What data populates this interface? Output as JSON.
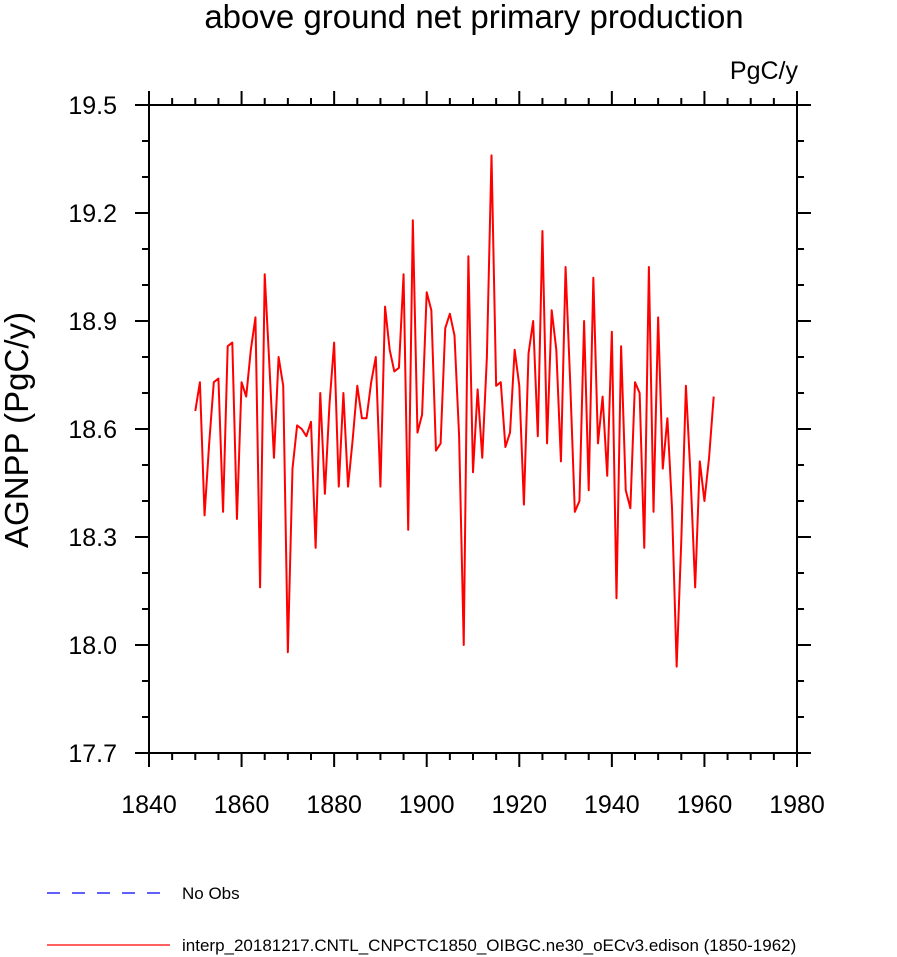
{
  "chart_data": {
    "type": "line",
    "title": "above ground net primary production",
    "units": "PgC/y",
    "ylabel": "AGNPP  (PgC/y)",
    "xlabel": "",
    "xlim": [
      1840,
      1980
    ],
    "ylim": [
      17.7,
      19.5
    ],
    "x_ticks": [
      "1840",
      "1860",
      "1880",
      "1900",
      "1920",
      "1940",
      "1960",
      "1980"
    ],
    "y_ticks": [
      "17.7",
      "18.0",
      "18.3",
      "18.6",
      "18.9",
      "19.2",
      "19.5"
    ],
    "x_tick_values": [
      1840,
      1860,
      1880,
      1900,
      1920,
      1940,
      1960,
      1980
    ],
    "y_tick_values": [
      17.7,
      18.0,
      18.3,
      18.6,
      18.9,
      19.2,
      19.5
    ],
    "series": [
      {
        "name": "interp_20181217.CNTL_CNPCTC1850_OIBGC.ne30_oECv3.edison (1850-1962)",
        "color": "#ff0000",
        "style": "solid",
        "x": [
          1850,
          1851,
          1852,
          1853,
          1854,
          1855,
          1856,
          1857,
          1858,
          1859,
          1860,
          1861,
          1862,
          1863,
          1864,
          1865,
          1866,
          1867,
          1868,
          1869,
          1870,
          1871,
          1872,
          1873,
          1874,
          1875,
          1876,
          1877,
          1878,
          1879,
          1880,
          1881,
          1882,
          1883,
          1884,
          1885,
          1886,
          1887,
          1888,
          1889,
          1890,
          1891,
          1892,
          1893,
          1894,
          1895,
          1896,
          1897,
          1898,
          1899,
          1900,
          1901,
          1902,
          1903,
          1904,
          1905,
          1906,
          1907,
          1908,
          1909,
          1910,
          1911,
          1912,
          1913,
          1914,
          1915,
          1916,
          1917,
          1918,
          1919,
          1920,
          1921,
          1922,
          1923,
          1924,
          1925,
          1926,
          1927,
          1928,
          1929,
          1930,
          1931,
          1932,
          1933,
          1934,
          1935,
          1936,
          1937,
          1938,
          1939,
          1940,
          1941,
          1942,
          1943,
          1944,
          1945,
          1946,
          1947,
          1948,
          1949,
          1950,
          1951,
          1952,
          1953,
          1954,
          1955,
          1956,
          1957,
          1958,
          1959,
          1960,
          1961,
          1962
        ],
        "values": [
          18.65,
          18.73,
          18.36,
          18.56,
          18.73,
          18.74,
          18.37,
          18.83,
          18.84,
          18.35,
          18.73,
          18.69,
          18.82,
          18.91,
          18.16,
          19.03,
          18.78,
          18.52,
          18.8,
          18.72,
          17.98,
          18.49,
          18.61,
          18.6,
          18.58,
          18.62,
          18.27,
          18.7,
          18.42,
          18.67,
          18.84,
          18.44,
          18.7,
          18.44,
          18.57,
          18.72,
          18.63,
          18.63,
          18.73,
          18.8,
          18.44,
          18.94,
          18.82,
          18.76,
          18.77,
          19.03,
          18.32,
          19.18,
          18.59,
          18.64,
          18.98,
          18.93,
          18.54,
          18.56,
          18.88,
          18.92,
          18.86,
          18.58,
          18.0,
          19.08,
          18.48,
          18.71,
          18.52,
          18.8,
          19.36,
          18.72,
          18.73,
          18.55,
          18.59,
          18.82,
          18.72,
          18.39,
          18.81,
          18.9,
          18.58,
          19.15,
          18.56,
          18.93,
          18.82,
          18.51,
          19.05,
          18.73,
          18.37,
          18.4,
          18.9,
          18.43,
          19.02,
          18.56,
          18.69,
          18.47,
          18.87,
          18.13,
          18.83,
          18.43,
          18.38,
          18.73,
          18.7,
          18.27,
          19.05,
          18.37,
          18.91,
          18.49,
          18.63,
          18.38,
          17.94,
          18.29,
          18.72,
          18.47,
          18.16,
          18.51,
          18.4,
          18.52,
          18.69
        ]
      }
    ],
    "legend": {
      "placement": "bottom-left",
      "entries": [
        {
          "label": "No Obs",
          "color": "#0000ff",
          "style": "dashed"
        },
        {
          "label": "interp_20181217.CNTL_CNPCTC1850_OIBGC.ne30_oECv3.edison (1850-1962)",
          "color": "#ff0000",
          "style": "solid"
        }
      ]
    },
    "grid": false
  }
}
